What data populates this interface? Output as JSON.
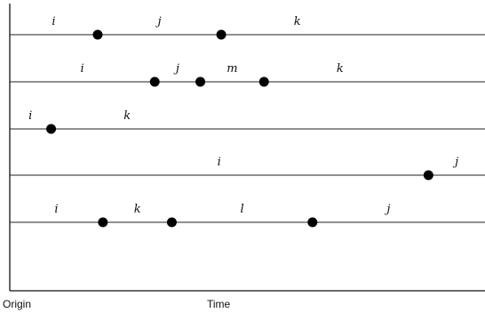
{
  "axis": {
    "origin_label": "Origin",
    "time_label": "Time"
  },
  "tracks": [
    {
      "segments": [
        "i",
        "j",
        "k"
      ],
      "event_times": [
        0.185,
        0.445
      ]
    },
    {
      "segments": [
        "i",
        "j",
        "m",
        "k"
      ],
      "event_times": [
        0.305,
        0.401,
        0.535
      ]
    },
    {
      "segments": [
        "i",
        "k"
      ],
      "event_times": [
        0.087
      ]
    },
    {
      "segments": [
        "i",
        "j"
      ],
      "event_times": [
        0.881
      ]
    },
    {
      "segments": [
        "i",
        "k",
        "l",
        "j"
      ],
      "event_times": [
        0.196,
        0.341,
        0.637
      ]
    }
  ]
}
